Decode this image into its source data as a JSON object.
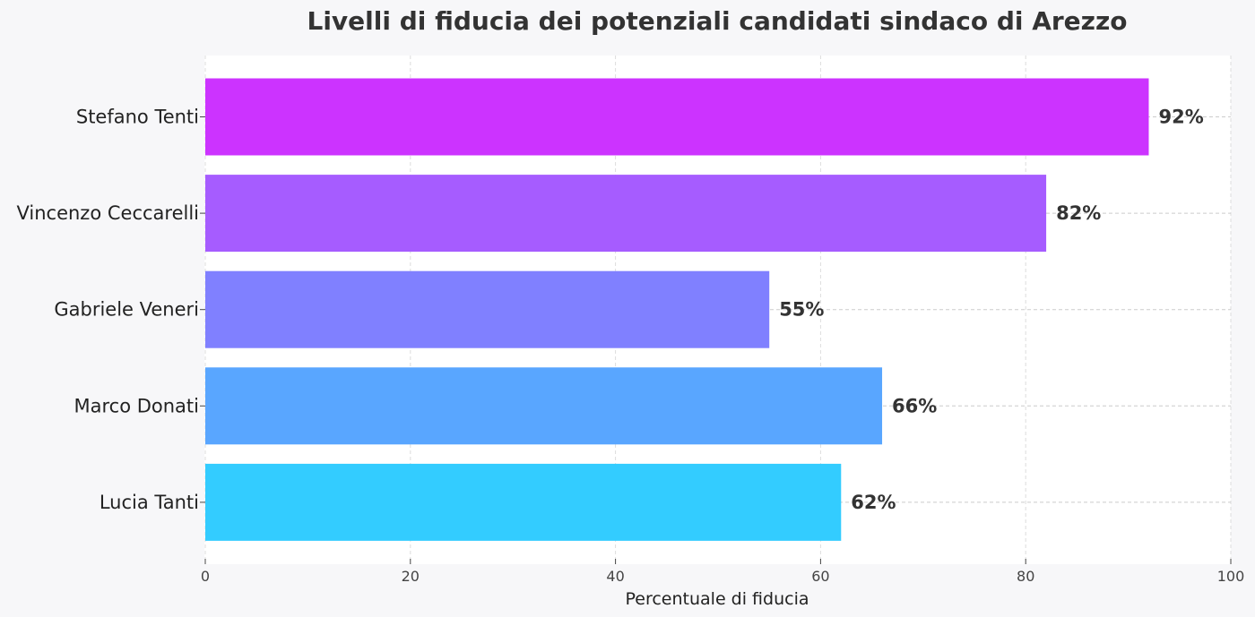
{
  "chart_data": {
    "type": "bar",
    "orientation": "horizontal",
    "title": "Livelli di fiducia dei potenziali candidati sindaco di Arezzo",
    "xlabel": "Percentuale di fiducia",
    "ylabel": "",
    "xlim": [
      0,
      100
    ],
    "xticks": [
      0,
      20,
      40,
      60,
      80,
      100
    ],
    "grid": true,
    "categories": [
      "Stefano Tenti",
      "Vincenzo Ceccarelli",
      "Gabriele Veneri",
      "Marco Donati",
      "Lucia Tanti"
    ],
    "values": [
      92,
      82,
      55,
      66,
      62
    ],
    "data_labels": [
      "92%",
      "82%",
      "55%",
      "66%",
      "62%"
    ],
    "colors": [
      "#cc33ff",
      "#a65cff",
      "#8080ff",
      "#59a6ff",
      "#33ccff"
    ]
  }
}
